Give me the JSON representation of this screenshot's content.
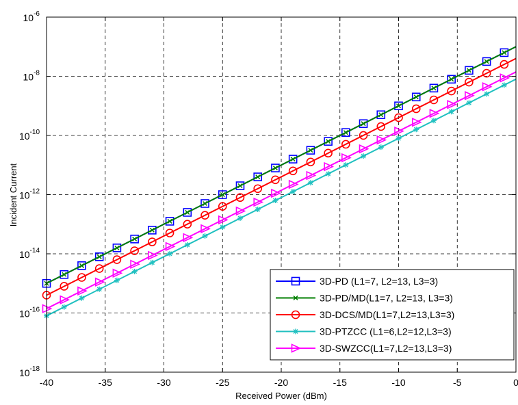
{
  "chart_data": {
    "type": "line",
    "title": "",
    "xlabel": "Received Power (dBm)",
    "ylabel": "Incident Current",
    "xlim": [
      -40,
      0
    ],
    "ylim": [
      1e-18,
      1e-06
    ],
    "yscale": "log",
    "grid": true,
    "legend_position": "bottom-right",
    "xticks": [
      "-40",
      "-35",
      "-30",
      "-25",
      "-20",
      "-15",
      "-10",
      "-5",
      "0"
    ],
    "xtick_values": [
      -40,
      -35,
      -30,
      -25,
      -20,
      -15,
      -10,
      -5,
      0
    ],
    "ytick_base": "10",
    "ytick_exponents": [
      "-6",
      "-8",
      "-10",
      "-12",
      "-14",
      "-16",
      "-18"
    ],
    "x": [
      -40,
      -38.5,
      -37,
      -35.5,
      -34,
      -32.5,
      -31,
      -29.5,
      -28,
      -26.5,
      -25,
      -23.5,
      -22,
      -20.5,
      -19,
      -17.5,
      -16,
      -14.5,
      -13,
      -11.5,
      -10,
      -8.5,
      -7,
      -5.5,
      -4,
      -2.5,
      -1,
      0
    ],
    "series": [
      {
        "name": "3D-PD (L1=7, L2=13, L3=3)",
        "color": "#0000ff",
        "marker": "square",
        "y_at_xmin": 1e-15,
        "y_at_xmax": 1e-07,
        "log_slope_per_10dBm": 2
      },
      {
        "name": "3D-PD/MD(L1=7, L2=13, L3=3)",
        "color": "#007f00",
        "marker": "x",
        "y_at_xmin": 1e-15,
        "y_at_xmax": 1e-07,
        "log_slope_per_10dBm": 2
      },
      {
        "name": "3D-DCS/MD(L1=7,L2=13,L3=3)",
        "color": "#ff0000",
        "marker": "circle",
        "y_at_xmin": 4e-16,
        "y_at_xmax": 4e-08,
        "log_slope_per_10dBm": 2
      },
      {
        "name": "3D-PTZCC (L1=6,L2=12,L3=3)",
        "color": "#20c0c0",
        "marker": "star",
        "y_at_xmin": 8e-17,
        "y_at_xmax": 8e-09,
        "log_slope_per_10dBm": 2
      },
      {
        "name": "3D-SWZCC(L1=7,L2=13,L3=3)",
        "color": "#ff00ff",
        "marker": "triangle-right",
        "y_at_xmin": 1.4e-16,
        "y_at_xmax": 1.4e-08,
        "log_slope_per_10dBm": 2
      }
    ]
  }
}
